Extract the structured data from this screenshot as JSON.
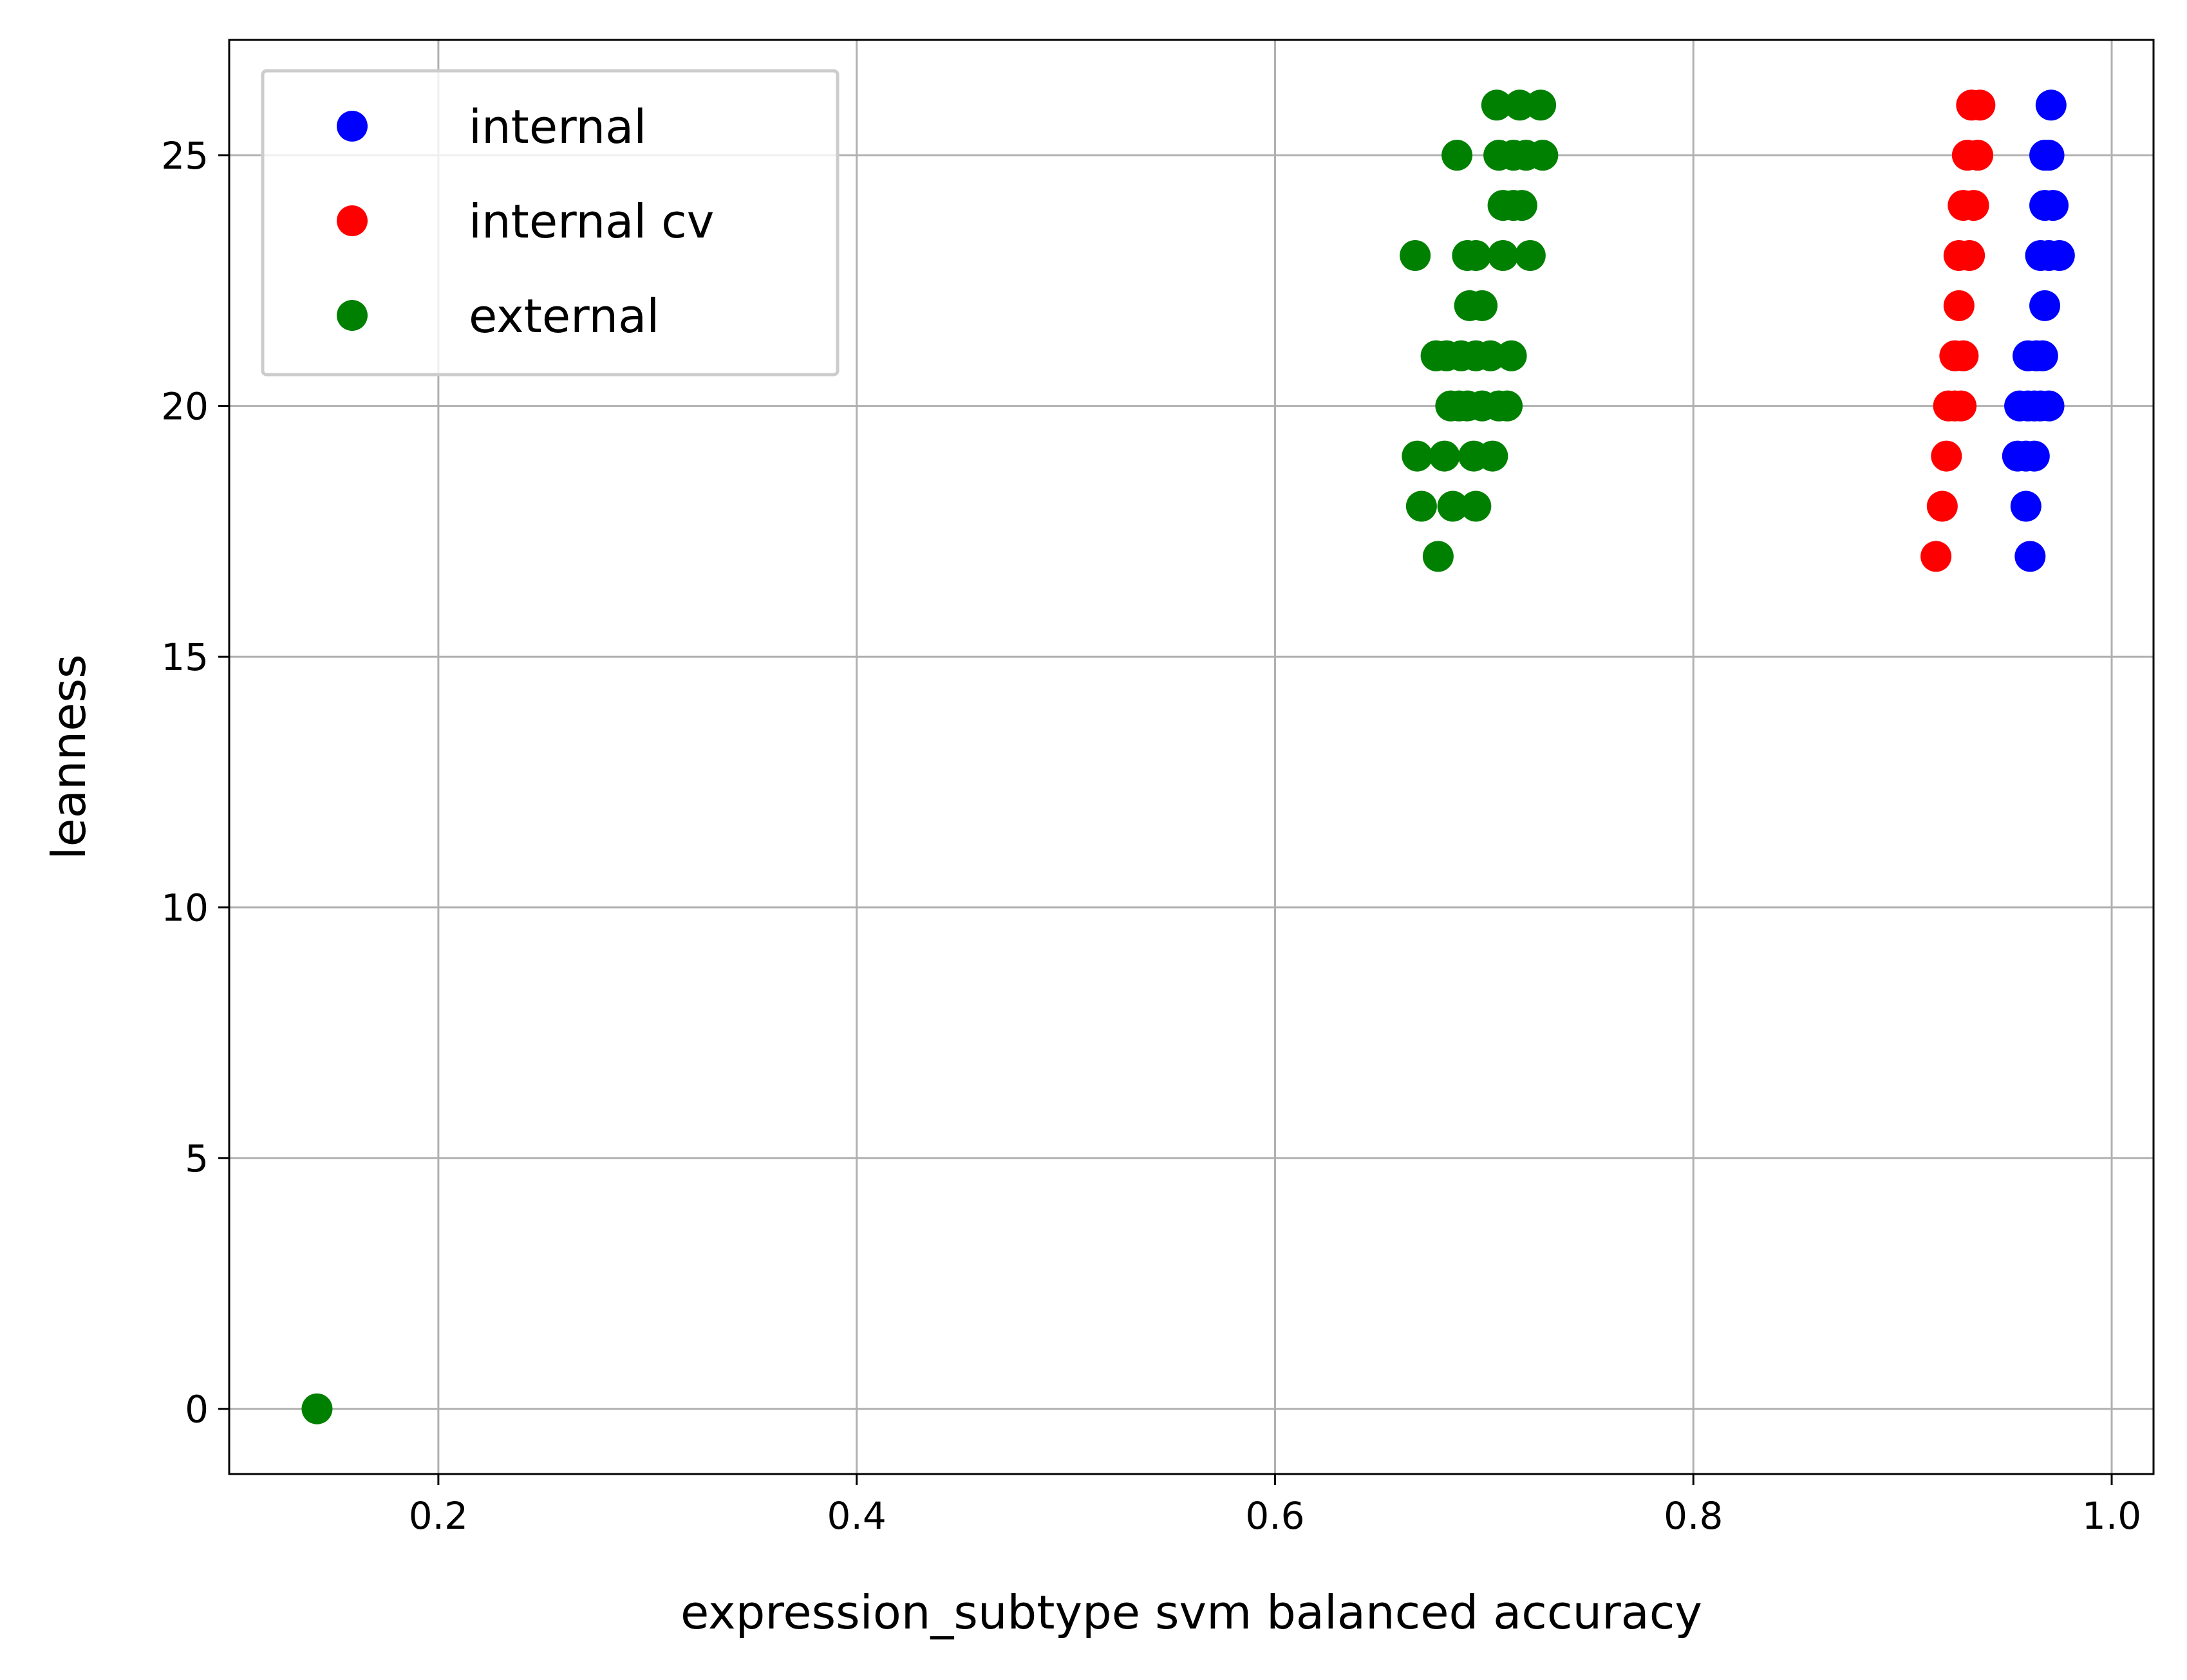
{
  "chart_data": {
    "type": "scatter",
    "xlabel": "expression_subtype svm balanced accuracy",
    "ylabel": "leanness",
    "xlim": [
      0.1,
      1.02
    ],
    "ylim": [
      -1.3,
      27.3
    ],
    "xticks": [
      "0.2",
      "0.4",
      "0.6",
      "0.8",
      "1.0"
    ],
    "yticks": [
      "0",
      "5",
      "10",
      "15",
      "20",
      "25"
    ],
    "grid": true,
    "legend_position": "top-left",
    "series": [
      {
        "name": "internal",
        "color": "#0000ff",
        "points": [
          [
            0.971,
            26
          ],
          [
            0.968,
            25
          ],
          [
            0.97,
            25
          ],
          [
            0.968,
            24
          ],
          [
            0.972,
            24
          ],
          [
            0.966,
            23
          ],
          [
            0.97,
            23
          ],
          [
            0.975,
            23
          ],
          [
            0.968,
            22
          ],
          [
            0.96,
            21
          ],
          [
            0.964,
            21
          ],
          [
            0.967,
            21
          ],
          [
            0.956,
            20
          ],
          [
            0.96,
            20
          ],
          [
            0.963,
            20
          ],
          [
            0.966,
            20
          ],
          [
            0.97,
            20
          ],
          [
            0.955,
            19
          ],
          [
            0.959,
            19
          ],
          [
            0.963,
            19
          ],
          [
            0.959,
            18
          ],
          [
            0.961,
            17
          ]
        ]
      },
      {
        "name": "internal cv",
        "color": "#ff0000",
        "points": [
          [
            0.933,
            26
          ],
          [
            0.937,
            26
          ],
          [
            0.931,
            25
          ],
          [
            0.936,
            25
          ],
          [
            0.929,
            24
          ],
          [
            0.934,
            24
          ],
          [
            0.927,
            23
          ],
          [
            0.932,
            23
          ],
          [
            0.927,
            22
          ],
          [
            0.925,
            21
          ],
          [
            0.929,
            21
          ],
          [
            0.922,
            20
          ],
          [
            0.925,
            20
          ],
          [
            0.928,
            20
          ],
          [
            0.921,
            19
          ],
          [
            0.919,
            18
          ],
          [
            0.916,
            17
          ]
        ]
      },
      {
        "name": "external",
        "color": "#008000",
        "points": [
          [
            0.706,
            26
          ],
          [
            0.717,
            26
          ],
          [
            0.727,
            26
          ],
          [
            0.687,
            25
          ],
          [
            0.707,
            25
          ],
          [
            0.714,
            25
          ],
          [
            0.72,
            25
          ],
          [
            0.728,
            25
          ],
          [
            0.709,
            24
          ],
          [
            0.714,
            24
          ],
          [
            0.718,
            24
          ],
          [
            0.667,
            23
          ],
          [
            0.692,
            23
          ],
          [
            0.696,
            23
          ],
          [
            0.709,
            23
          ],
          [
            0.722,
            23
          ],
          [
            0.693,
            22
          ],
          [
            0.699,
            22
          ],
          [
            0.677,
            21
          ],
          [
            0.682,
            21
          ],
          [
            0.689,
            21
          ],
          [
            0.696,
            21
          ],
          [
            0.703,
            21
          ],
          [
            0.713,
            21
          ],
          [
            0.684,
            20
          ],
          [
            0.688,
            20
          ],
          [
            0.692,
            20
          ],
          [
            0.699,
            20
          ],
          [
            0.707,
            20
          ],
          [
            0.711,
            20
          ],
          [
            0.668,
            19
          ],
          [
            0.681,
            19
          ],
          [
            0.695,
            19
          ],
          [
            0.704,
            19
          ],
          [
            0.67,
            18
          ],
          [
            0.685,
            18
          ],
          [
            0.696,
            18
          ],
          [
            0.678,
            17
          ],
          [
            0.142,
            0
          ]
        ]
      }
    ]
  }
}
